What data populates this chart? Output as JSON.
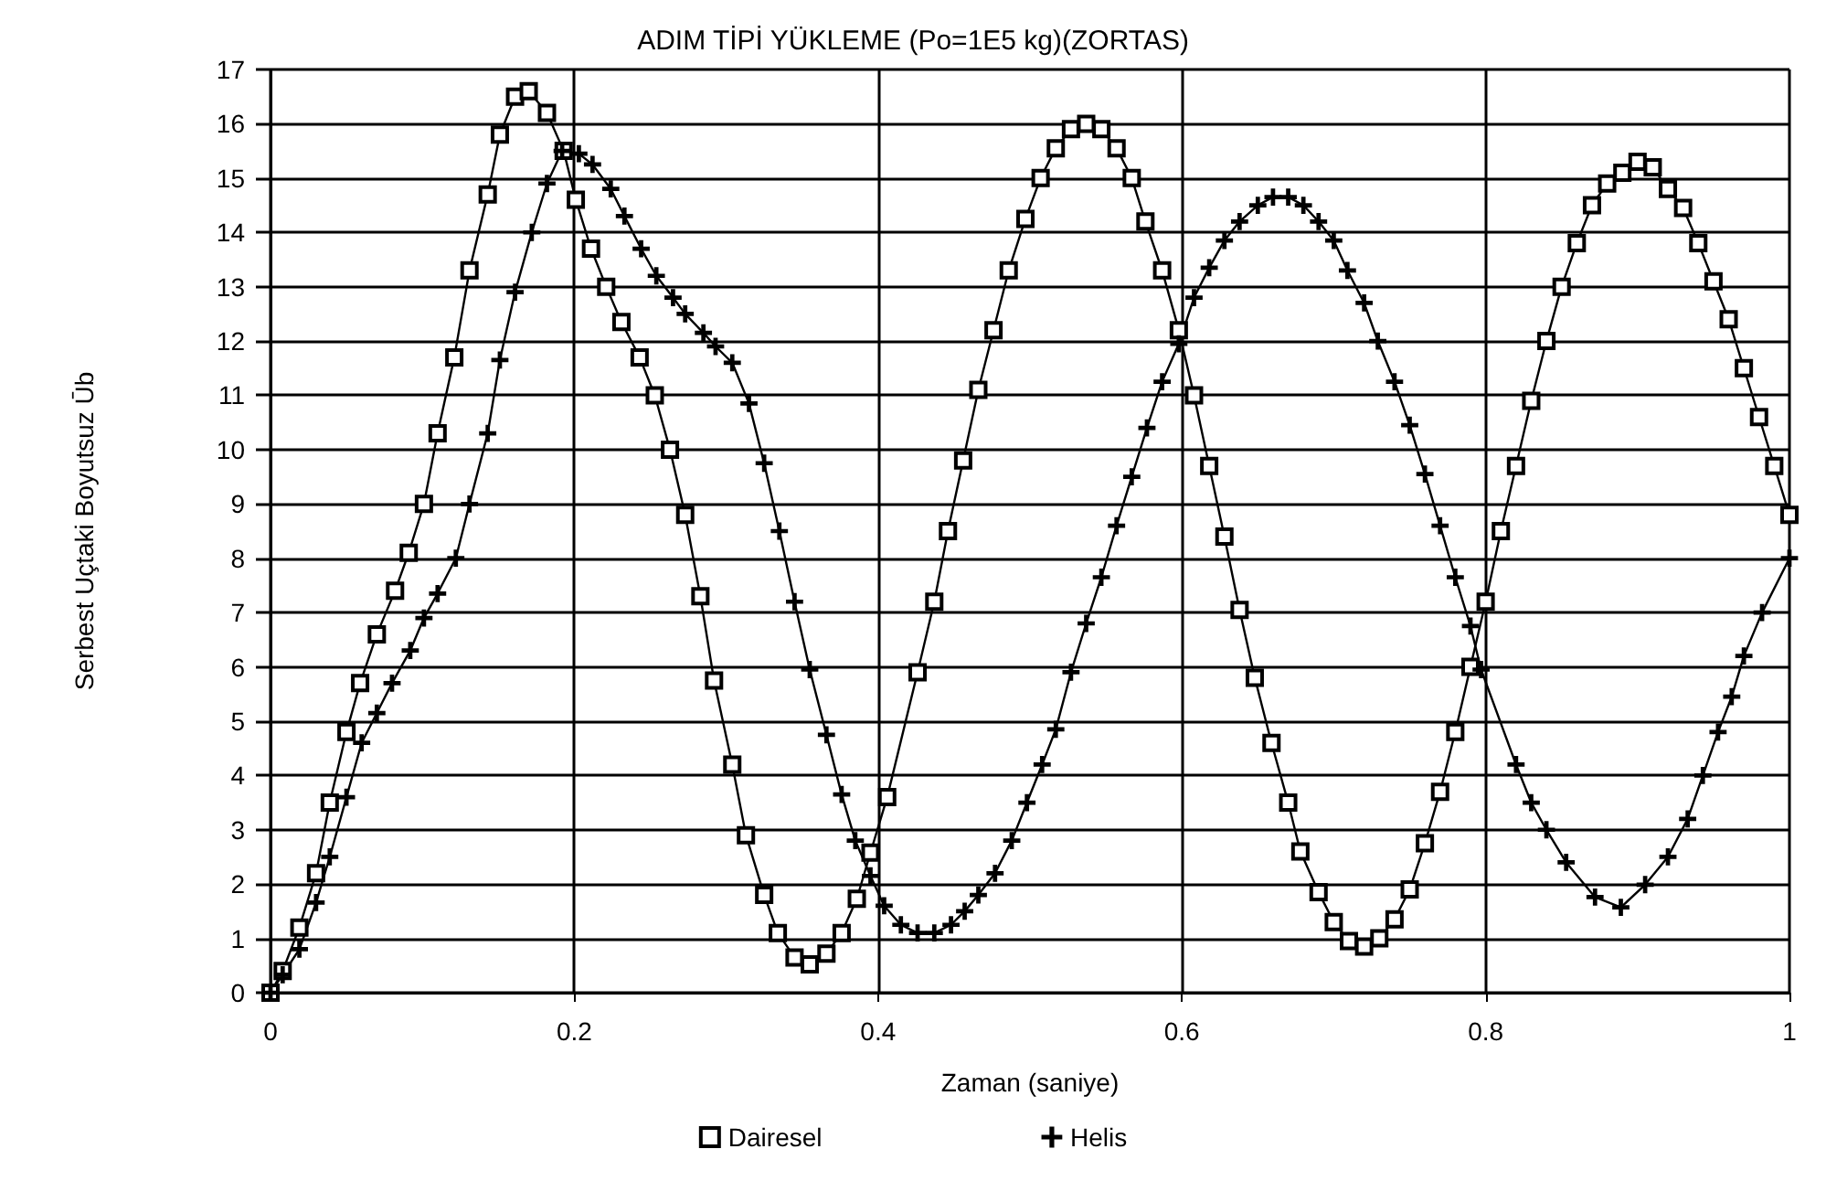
{
  "chart_data": {
    "type": "line",
    "title": "ADIM TİPİ YÜKLEME (Po=1E5 kg)(ZORTAS)",
    "xlabel": "Zaman (saniye)",
    "ylabel": "Serbest Uçtaki Boyutsuz Ūb",
    "xlim": [
      0,
      1
    ],
    "xticks": [
      0,
      0.2,
      0.4,
      0.6,
      0.8,
      1
    ],
    "ylim": [
      0,
      17
    ],
    "yticks": [
      0,
      1,
      2,
      3,
      4,
      5,
      6,
      7,
      8,
      9,
      10,
      11,
      12,
      13,
      14,
      15,
      16,
      17
    ],
    "grid": true,
    "legend": "bottom",
    "line_style": "solid",
    "series": [
      {
        "name": "Dairesel",
        "color": "#000000",
        "marker": "square",
        "x": [
          0,
          0.008,
          0.019,
          0.03,
          0.039,
          0.05,
          0.059,
          0.07,
          0.082,
          0.091,
          0.101,
          0.11,
          0.121,
          0.131,
          0.143,
          0.151,
          0.161,
          0.17,
          0.182,
          0.193,
          0.201,
          0.211,
          0.221,
          0.231,
          0.243,
          0.253,
          0.263,
          0.273,
          0.283,
          0.292,
          0.304,
          0.313,
          0.325,
          0.334,
          0.345,
          0.355,
          0.366,
          0.376,
          0.386,
          0.395,
          0.406,
          0.426,
          0.437,
          0.446,
          0.456,
          0.466,
          0.476,
          0.486,
          0.497,
          0.507,
          0.517,
          0.527,
          0.537,
          0.547,
          0.557,
          0.567,
          0.576,
          0.587,
          0.598,
          0.608,
          0.618,
          0.628,
          0.638,
          0.648,
          0.659,
          0.67,
          0.678,
          0.69,
          0.7,
          0.71,
          0.72,
          0.73,
          0.74,
          0.75,
          0.76,
          0.77,
          0.78,
          0.79,
          0.8,
          0.81,
          0.82,
          0.83,
          0.84,
          0.85,
          0.86,
          0.87,
          0.88,
          0.89,
          0.9,
          0.91,
          0.92,
          0.93,
          0.94,
          0.95,
          0.96,
          0.97,
          0.98,
          0.99,
          1.0
        ],
        "values": [
          0,
          0.4,
          1.2,
          2.2,
          3.5,
          4.8,
          5.7,
          6.6,
          7.4,
          8.1,
          9.0,
          10.3,
          11.7,
          13.3,
          14.7,
          15.8,
          16.5,
          16.6,
          16.2,
          15.5,
          14.6,
          13.7,
          13.0,
          12.35,
          11.7,
          11.0,
          10.0,
          8.8,
          7.3,
          5.75,
          4.2,
          2.9,
          1.8,
          1.1,
          0.65,
          0.52,
          0.72,
          1.1,
          1.73,
          2.58,
          3.6,
          5.9,
          7.2,
          8.5,
          9.8,
          11.1,
          12.2,
          13.3,
          14.25,
          15.0,
          15.55,
          15.9,
          16.0,
          15.9,
          15.55,
          15.0,
          14.2,
          13.3,
          12.2,
          11.0,
          9.7,
          8.4,
          7.05,
          5.8,
          4.6,
          3.5,
          2.6,
          1.85,
          1.3,
          0.95,
          0.85,
          1.0,
          1.35,
          1.9,
          2.75,
          3.7,
          4.8,
          6.0,
          7.2,
          8.5,
          9.7,
          10.9,
          12.0,
          13.0,
          13.8,
          14.5,
          14.9,
          15.1,
          15.3,
          15.2,
          14.8,
          14.45,
          13.8,
          13.1,
          12.4,
          11.5,
          10.6,
          9.7,
          8.8
        ]
      },
      {
        "name": "Helis",
        "color": "#000000",
        "marker": "cross",
        "x": [
          0,
          0.008,
          0.019,
          0.03,
          0.039,
          0.05,
          0.06,
          0.07,
          0.08,
          0.092,
          0.101,
          0.11,
          0.122,
          0.131,
          0.143,
          0.151,
          0.161,
          0.172,
          0.182,
          0.192,
          0.203,
          0.212,
          0.224,
          0.233,
          0.244,
          0.254,
          0.265,
          0.273,
          0.285,
          0.293,
          0.304,
          0.315,
          0.325,
          0.335,
          0.345,
          0.355,
          0.366,
          0.376,
          0.385,
          0.395,
          0.404,
          0.415,
          0.426,
          0.437,
          0.448,
          0.457,
          0.466,
          0.477,
          0.488,
          0.498,
          0.508,
          0.517,
          0.527,
          0.537,
          0.547,
          0.557,
          0.567,
          0.577,
          0.587,
          0.598,
          0.608,
          0.618,
          0.628,
          0.638,
          0.65,
          0.66,
          0.67,
          0.68,
          0.69,
          0.7,
          0.709,
          0.72,
          0.729,
          0.74,
          0.75,
          0.76,
          0.77,
          0.78,
          0.79,
          0.797,
          0.82,
          0.83,
          0.84,
          0.853,
          0.872,
          0.889,
          0.905,
          0.92,
          0.933,
          0.943,
          0.953,
          0.962,
          0.97,
          0.982,
          1.0
        ],
        "values": [
          0,
          0.33,
          0.8,
          1.66,
          2.5,
          3.6,
          4.6,
          5.15,
          5.7,
          6.3,
          6.9,
          7.35,
          8.0,
          9.0,
          10.3,
          11.65,
          12.9,
          14.0,
          14.9,
          15.5,
          15.45,
          15.25,
          14.8,
          14.3,
          13.7,
          13.2,
          12.8,
          12.5,
          12.15,
          11.9,
          11.6,
          10.85,
          9.75,
          8.5,
          7.2,
          5.95,
          4.75,
          3.65,
          2.8,
          2.15,
          1.6,
          1.25,
          1.1,
          1.1,
          1.25,
          1.5,
          1.8,
          2.2,
          2.8,
          3.5,
          4.2,
          4.85,
          5.9,
          6.8,
          7.65,
          8.6,
          9.5,
          10.4,
          11.25,
          11.95,
          12.8,
          13.35,
          13.85,
          14.2,
          14.5,
          14.65,
          14.65,
          14.5,
          14.2,
          13.85,
          13.3,
          12.7,
          12.0,
          11.25,
          10.45,
          9.55,
          8.6,
          7.65,
          6.75,
          5.95,
          4.2,
          3.5,
          3.0,
          2.4,
          1.76,
          1.57,
          1.99,
          2.5,
          3.2,
          4.0,
          4.8,
          5.45,
          6.2,
          7.0,
          8.0
        ]
      }
    ]
  }
}
